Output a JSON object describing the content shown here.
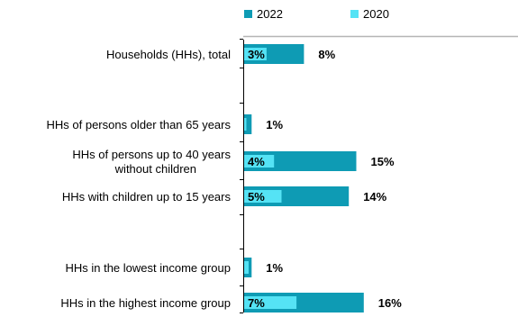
{
  "chart_data": {
    "type": "bar",
    "orientation": "horizontal",
    "categories": [
      "Households (HHs), total",
      "",
      "HHs of persons older than 65 years",
      "HHs of persons up to 40 years without children",
      "HHs with children up to 15 years",
      "",
      "HHs in the lowest income group",
      "HHs in the highest income group"
    ],
    "category_lines": [
      [
        "Households (HHs), total"
      ],
      [],
      [
        "HHs of persons older than 65 years"
      ],
      [
        "HHs of persons up to 40 years",
        "without children"
      ],
      [
        "HHs with children up to 15 years"
      ],
      [],
      [
        "HHs in the lowest income group"
      ],
      [
        "HHs in the highest income group"
      ]
    ],
    "series": [
      {
        "name": "2022",
        "color": "#0e9bb4",
        "values": [
          8,
          null,
          1,
          15,
          14,
          null,
          1,
          16
        ],
        "labels": [
          "8%",
          "",
          "1%",
          "15%",
          "14%",
          "",
          "1%",
          "16%"
        ]
      },
      {
        "name": "2020",
        "color": "#55e3f5",
        "values": [
          3,
          null,
          0.3,
          4,
          5,
          null,
          0.6,
          7
        ],
        "labels": [
          "3%",
          "",
          "",
          "4%",
          "5%",
          "",
          "",
          "7%"
        ]
      }
    ],
    "xlim": [
      0,
      22
    ],
    "grid": false,
    "legend": "top"
  }
}
